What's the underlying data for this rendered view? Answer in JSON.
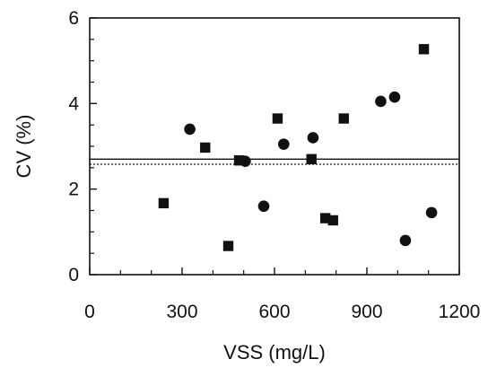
{
  "chart_data": {
    "type": "scatter",
    "xlabel": "VSS (mg/L)",
    "ylabel": "CV (%)",
    "xlim": [
      0,
      1200
    ],
    "ylim": [
      0,
      6
    ],
    "xticks": [
      "0",
      "300",
      "600",
      "900",
      "1200"
    ],
    "yticks": [
      "0",
      "2",
      "4",
      "6"
    ],
    "grid": false,
    "series": [
      {
        "marker": "circle",
        "color": "#111111",
        "x": [
          325,
          505,
          565,
          630,
          725,
          945,
          990,
          1025,
          1110
        ],
        "y": [
          3.4,
          2.65,
          1.6,
          3.05,
          3.2,
          4.05,
          4.15,
          0.8,
          1.45
        ]
      },
      {
        "marker": "square",
        "color": "#111111",
        "x": [
          240,
          375,
          450,
          485,
          610,
          720,
          765,
          790,
          825,
          1085
        ],
        "y": [
          1.67,
          2.97,
          0.67,
          2.67,
          3.65,
          2.7,
          1.32,
          1.27,
          3.65,
          5.27
        ]
      }
    ],
    "reference_lines": [
      {
        "y": 2.7,
        "style": "solid"
      },
      {
        "y": 2.58,
        "style": "dotted"
      }
    ]
  }
}
